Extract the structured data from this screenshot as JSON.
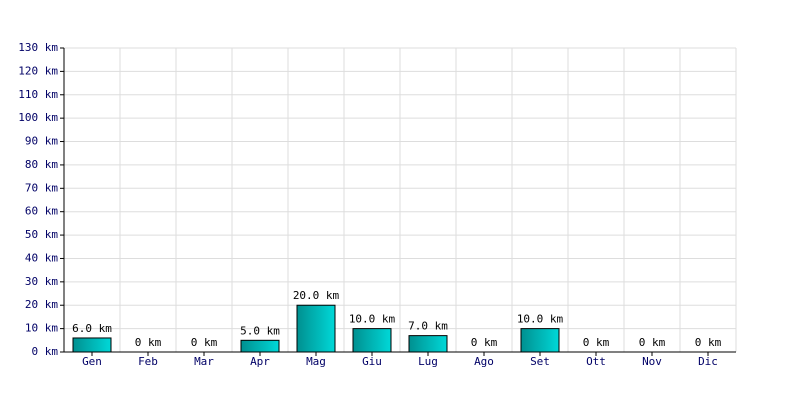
{
  "chart_data": {
    "type": "bar",
    "categories": [
      "Gen",
      "Feb",
      "Mar",
      "Apr",
      "Mag",
      "Giu",
      "Lug",
      "Ago",
      "Set",
      "Ott",
      "Nov",
      "Dic"
    ],
    "values": [
      6,
      0,
      0,
      5,
      20,
      10,
      7,
      0,
      10,
      0,
      0,
      0
    ],
    "value_labels": [
      "6.0 km",
      "0 km",
      "0 km",
      "5.0 km",
      "20.0 km",
      "10.0 km",
      "7.0 km",
      "0 km",
      "10.0 km",
      "0 km",
      "0 km",
      "0 km"
    ],
    "color": "#00d8d8",
    "ylim": [
      0,
      130
    ],
    "yticks": [
      {
        "value": 0,
        "label": "0 km"
      },
      {
        "value": 10,
        "label": "10 km"
      },
      {
        "value": 20,
        "label": "20 km"
      },
      {
        "value": 30,
        "label": "30 km"
      },
      {
        "value": 40,
        "label": "40 km"
      },
      {
        "value": 50,
        "label": "50 km"
      },
      {
        "value": 60,
        "label": "60 km"
      },
      {
        "value": 70,
        "label": "70 km"
      },
      {
        "value": 80,
        "label": "80 km"
      },
      {
        "value": 90,
        "label": "90 km"
      },
      {
        "value": 100,
        "label": "100 km"
      },
      {
        "value": 110,
        "label": "110 km"
      },
      {
        "value": 120,
        "label": "120 km"
      },
      {
        "value": 130,
        "label": "130 km"
      }
    ],
    "grid": true
  }
}
